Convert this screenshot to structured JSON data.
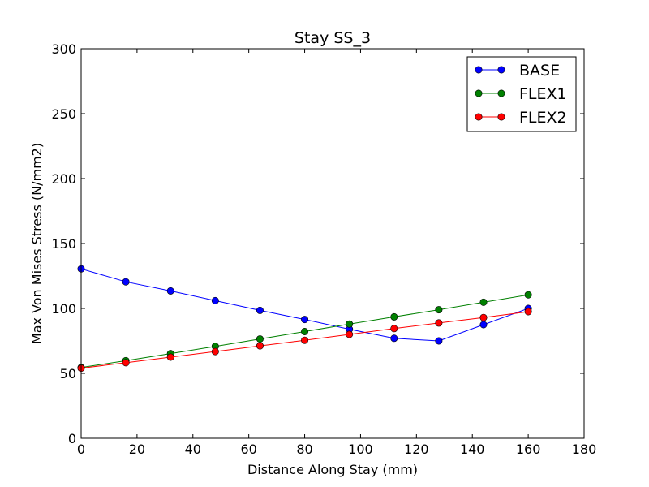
{
  "chart_data": {
    "type": "line",
    "title": "Stay SS_3",
    "xlabel": "Distance Along Stay (mm)",
    "ylabel": "Max Von Mises Stress (N/mm2)",
    "xlim": [
      0,
      180
    ],
    "ylim": [
      0,
      300
    ],
    "xticks": [
      0,
      20,
      40,
      60,
      80,
      100,
      120,
      140,
      160,
      180
    ],
    "yticks": [
      0,
      50,
      100,
      150,
      200,
      250,
      300
    ],
    "x": [
      0,
      16,
      32,
      48,
      64,
      80,
      96,
      112,
      128,
      144,
      160
    ],
    "grid": false,
    "legend_position": "top-right",
    "series": [
      {
        "name": "BASE",
        "color": "#0000ff",
        "values": [
          130.5,
          120.5,
          113.5,
          106,
          98.5,
          91.5,
          84,
          77,
          75,
          87.5,
          100
        ]
      },
      {
        "name": "FLEX1",
        "color": "#008000",
        "values": [
          54.5,
          59.8,
          65.2,
          70.8,
          76.5,
          82.2,
          88,
          93.5,
          99,
          104.8,
          110.5
        ]
      },
      {
        "name": "FLEX2",
        "color": "#ff0000",
        "values": [
          54,
          58.2,
          62.5,
          66.8,
          71.2,
          75.5,
          80,
          84.5,
          88.8,
          93,
          97.5
        ]
      }
    ]
  }
}
